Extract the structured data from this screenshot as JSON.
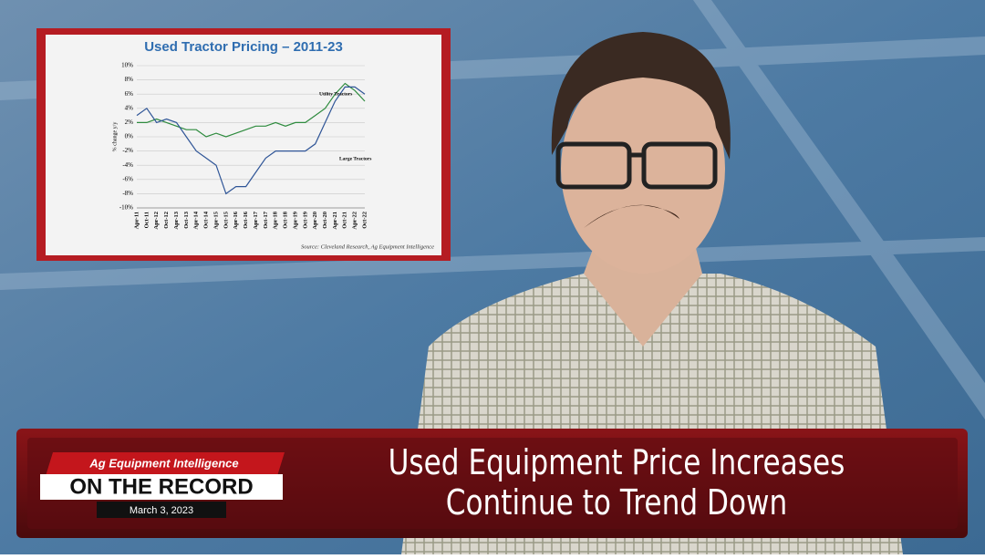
{
  "chart_data": {
    "type": "line",
    "title": "Used Tractor Pricing – 2011-23",
    "y_label": "% change y/y",
    "source": "Source: Cleveland Research, Ag Equipment Intelligence",
    "categories": [
      "Apr-11",
      "Oct-11",
      "Apr-12",
      "Oct-12",
      "Apr-13",
      "Oct-13",
      "Apr-14",
      "Oct-14",
      "Apr-15",
      "Oct-15",
      "Apr-16",
      "Oct-16",
      "Apr-17",
      "Oct-17",
      "Apr-18",
      "Oct-18",
      "Apr-19",
      "Oct-19",
      "Apr-20",
      "Oct-20",
      "Apr-21",
      "Oct-21",
      "Apr-22",
      "Oct-22"
    ],
    "series": [
      {
        "name": "Utility Tractors",
        "color": "#2e8b3e",
        "values": [
          2,
          2,
          2.5,
          2,
          1.5,
          1,
          1,
          0,
          0.5,
          0,
          0.5,
          1,
          1.5,
          1.5,
          2,
          1.5,
          2,
          2,
          3,
          4,
          6,
          7.5,
          6.5,
          5
        ]
      },
      {
        "name": "Large Tractors",
        "color": "#2f5597",
        "values": [
          3,
          4,
          2,
          2.5,
          2,
          0,
          -2,
          -3,
          -4,
          -8,
          -7,
          -7,
          -5,
          -3,
          -2,
          -2,
          -2,
          -2,
          -1,
          2,
          5,
          7,
          7,
          6
        ]
      }
    ],
    "ylim": [
      -10,
      10
    ],
    "yticks": [
      {
        "value": -10,
        "label": "-10%"
      },
      {
        "value": -8,
        "label": "-8%"
      },
      {
        "value": -6,
        "label": "-6%"
      },
      {
        "value": -4,
        "label": "-4%"
      },
      {
        "value": -2,
        "label": "-2%"
      },
      {
        "value": 0,
        "label": "0%"
      },
      {
        "value": 2,
        "label": "2%"
      },
      {
        "value": 4,
        "label": "4%"
      },
      {
        "value": 6,
        "label": "6%"
      },
      {
        "value": 8,
        "label": "8%"
      },
      {
        "value": 10,
        "label": "10%"
      }
    ],
    "grid": true
  },
  "lower_third": {
    "brand": "Ag Equipment Intelligence",
    "show": "ON THE RECORD",
    "date": "March 3, 2023",
    "headline": {
      "lines": [
        "Used Equipment Price Increases",
        "Continue to Trend Down"
      ]
    }
  }
}
